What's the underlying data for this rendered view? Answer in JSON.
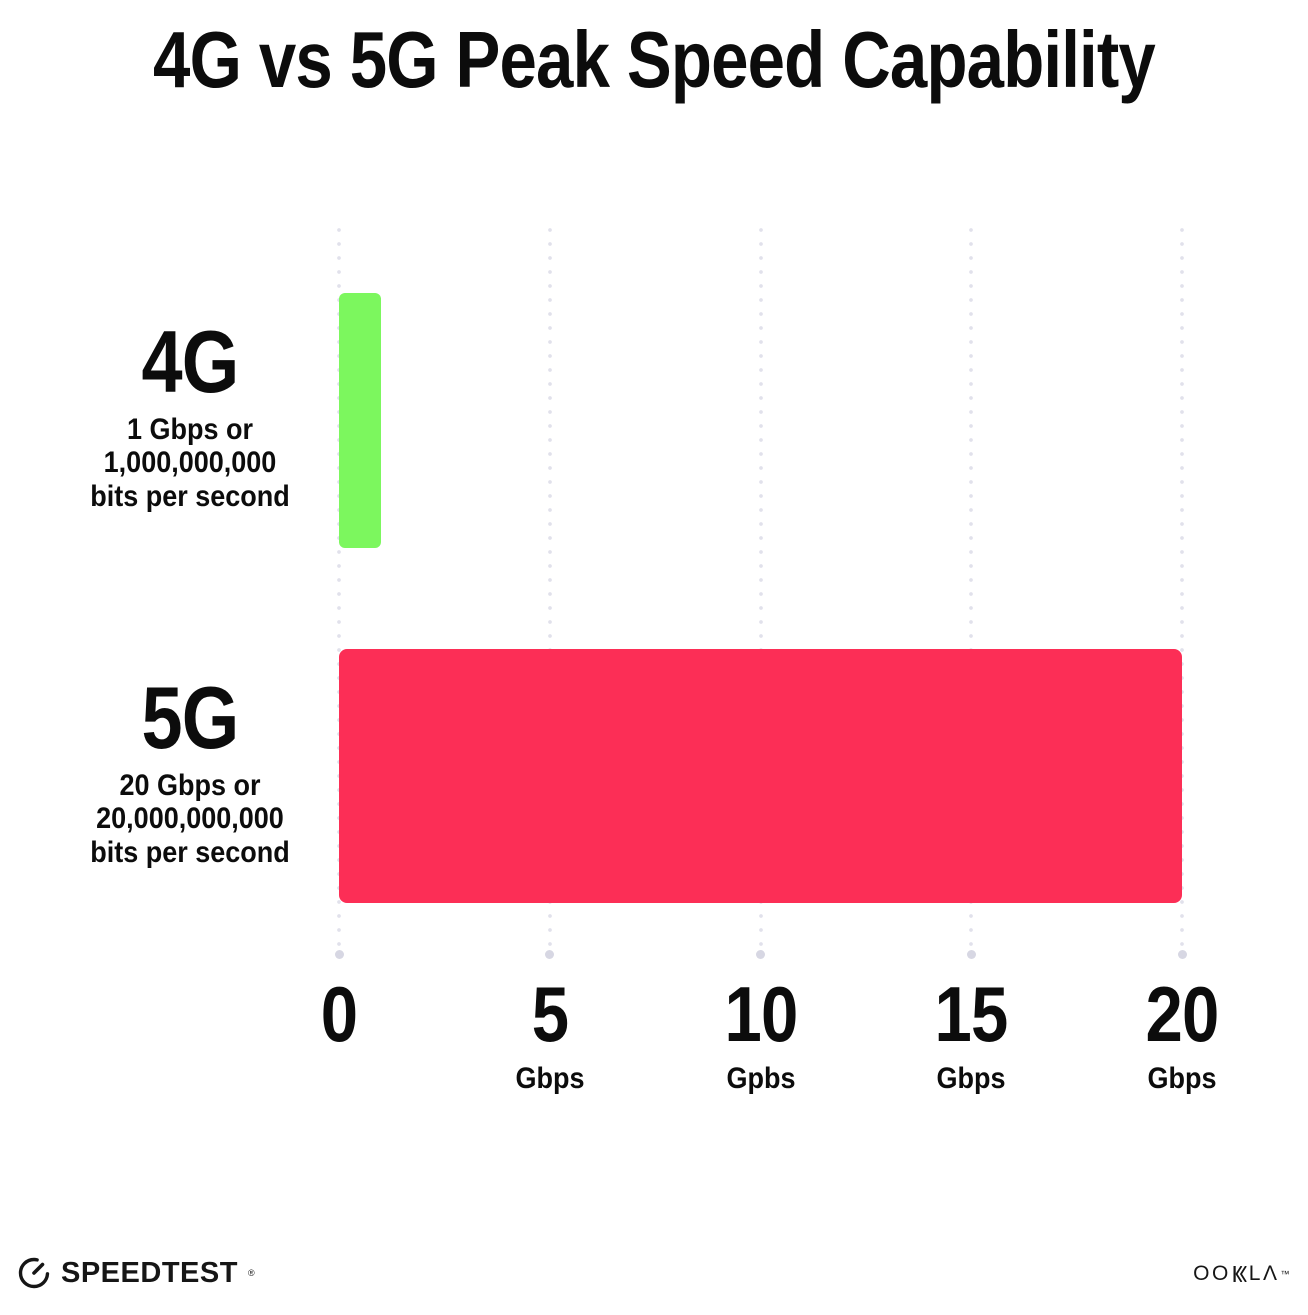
{
  "chart_data": {
    "type": "bar",
    "orientation": "horizontal",
    "title": "4G vs 5G Peak Speed Capability",
    "categories": [
      "4G",
      "5G"
    ],
    "values": [
      1,
      20
    ],
    "xlim": [
      0,
      20
    ],
    "grid": "vertical-dotted",
    "legend": "none",
    "bar_colors": [
      "#7cf75e",
      "#fc2e56"
    ],
    "rows": [
      {
        "label": "4G",
        "value": 1,
        "color": "#7cf75e",
        "desc_lines": [
          "1 Gbps or",
          "1,000,000,000",
          "bits per second"
        ]
      },
      {
        "label": "5G",
        "value": 20,
        "color": "#fc2e56",
        "desc_lines": [
          "20 Gbps or",
          "20,000,000,000",
          "bits per second"
        ]
      }
    ],
    "xticks": [
      {
        "value": "0",
        "unit": ""
      },
      {
        "value": "5",
        "unit": "Gbps"
      },
      {
        "value": "10",
        "unit": "Gpbs"
      },
      {
        "value": "15",
        "unit": "Gbps"
      },
      {
        "value": "20",
        "unit": "Gbps"
      }
    ]
  },
  "footer": {
    "speedtest": {
      "label": "SPEEDTEST",
      "trademark": "®"
    },
    "ookla": {
      "label": "OOKLA",
      "left": "OO",
      "right": "L",
      "a_glyph": "Λ",
      "trademark": "™"
    }
  },
  "colors": {
    "text": "#0c0c0c",
    "bar_4g": "#7cf75e",
    "bar_5g": "#fc2e56",
    "grid_dot": "#e1e1eb",
    "grid_end_dot": "#d7d7e3",
    "background": "#ffffff"
  }
}
